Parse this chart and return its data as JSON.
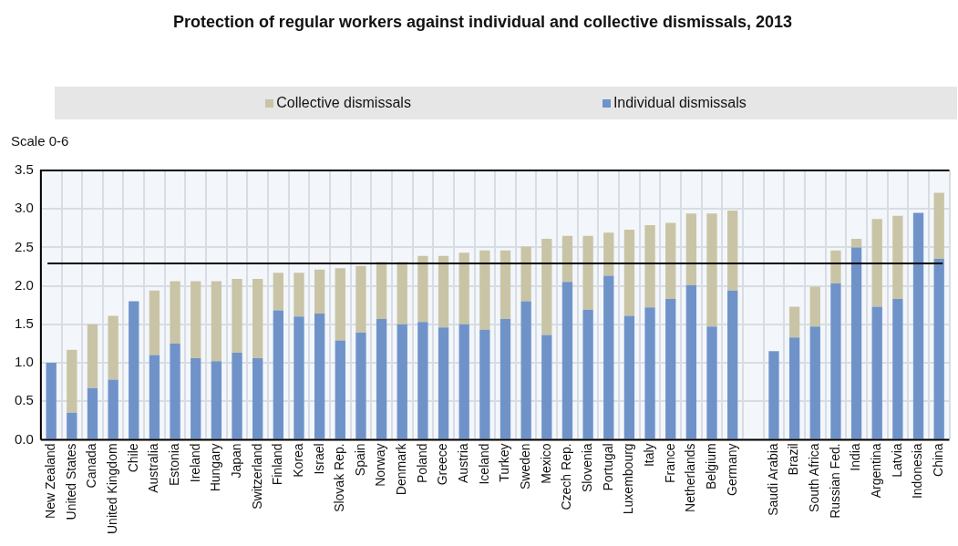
{
  "chart_data": {
    "type": "bar",
    "title": "Protection of regular workers against individual and collective dismissals, 2013",
    "ylabel": "Scale 0-6",
    "categories": [
      "New Zealand",
      "United States",
      "Canada",
      "United Kingdom",
      "Chile",
      "Australia",
      "Estonia",
      "Ireland",
      "Hungary",
      "Japan",
      "Switzerland",
      "Finland",
      "Korea",
      "Israel",
      "Slovak Rep.",
      "Spain",
      "Norway",
      "Denmark",
      "Poland",
      "Greece",
      "Austria",
      "Iceland",
      "Turkey",
      "Sweden",
      "Mexico",
      "Czech Rep.",
      "Slovenia",
      "Portugal",
      "Luxembourg",
      "Italy",
      "France",
      "Netherlands",
      "Belgium",
      "Germany",
      null,
      "Saudi Arabia",
      "Brazil",
      "South Africa",
      "Russian Fed.",
      "India",
      "Argentina",
      "Latvia",
      "Indonesia",
      "China"
    ],
    "stacked": true,
    "series": [
      {
        "name": "Individual dismissals",
        "color": "#6f93c9",
        "values": [
          1.0,
          0.35,
          0.67,
          0.78,
          1.8,
          1.1,
          1.25,
          1.06,
          1.02,
          1.13,
          1.06,
          1.68,
          1.6,
          1.64,
          1.29,
          1.39,
          1.57,
          1.5,
          1.53,
          1.46,
          1.5,
          1.43,
          1.57,
          1.8,
          1.36,
          2.05,
          1.69,
          2.13,
          1.61,
          1.72,
          1.83,
          2.01,
          1.47,
          1.94,
          null,
          1.15,
          1.33,
          1.47,
          2.03,
          2.5,
          1.73,
          1.83,
          2.95,
          2.35
        ]
      },
      {
        "name": "Collective dismissals",
        "color": "#c9c4a5",
        "values": [
          0,
          0.82,
          0.83,
          0.83,
          0,
          0.84,
          0.81,
          1.0,
          1.04,
          0.96,
          1.03,
          0.49,
          0.57,
          0.57,
          0.94,
          0.87,
          0.74,
          0.81,
          0.86,
          0.93,
          0.93,
          1.03,
          0.89,
          0.71,
          1.25,
          0.6,
          0.96,
          0.56,
          1.12,
          1.07,
          0.99,
          0.93,
          1.47,
          1.04,
          null,
          0,
          0.4,
          0.52,
          0.43,
          0.11,
          1.14,
          1.08,
          0,
          0.86
        ]
      }
    ],
    "ylim": [
      0,
      3.5
    ],
    "yticks": [
      {
        "value": 0,
        "label": "0.0"
      },
      0.5,
      {
        "value": 1,
        "label": "1.0"
      },
      1.5,
      {
        "value": 2,
        "label": "2.0"
      },
      2.5,
      {
        "value": 3,
        "label": "3.0"
      },
      3.5
    ],
    "ref_lines": [
      {
        "axis": "y",
        "value": 2.29,
        "color": "#000000"
      }
    ],
    "grid": true,
    "legend": "top"
  }
}
